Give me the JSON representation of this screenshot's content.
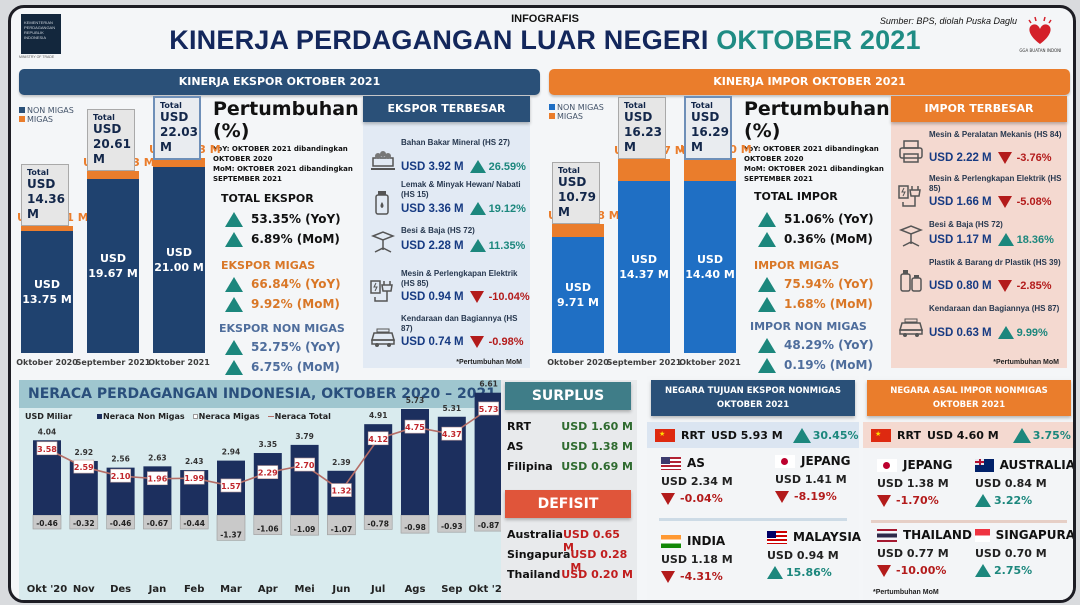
{
  "header": {
    "label": "INFOGRAFIS",
    "title_main": "KINERJA PERDAGANGAN LUAR NEGERI",
    "title_accent": "OKTOBER 2021",
    "source": "Sumber: BPS, diolah Puska Daglu",
    "logo_left_text": "KEMENTERIAN PERDAGANGAN REPUBLIK INDONESIA",
    "logo_left_sub": "MINISTRY OF TRADE",
    "logo_right_text": "BANGGA BUATAN INDONESIA"
  },
  "export": {
    "section_title": "KINERJA EKSPOR OKTOBER 2021",
    "legend": [
      "NON MIGAS",
      "MIGAS"
    ],
    "bars": [
      {
        "period": "Oktober 2020",
        "non_migas": 13.75,
        "migas": 0.61,
        "total": 14.36,
        "non_migas_label": "USD 13.75 M",
        "migas_label": "USD 0.61 M",
        "total_word": "Total",
        "total_label1": "USD",
        "total_label2": "14.36 M"
      },
      {
        "period": "September 2021",
        "non_migas": 19.67,
        "migas": 0.93,
        "total": 20.61,
        "non_migas_label": "USD 19.67 M",
        "migas_label": "USD 0.93 M",
        "total_word": "Total",
        "total_label1": "USD",
        "total_label2": "20.61 M"
      },
      {
        "period": "Oktober 2021",
        "non_migas": 21.0,
        "migas": 1.03,
        "total": 22.03,
        "non_migas_label": "USD 21.00 M",
        "migas_label": "USD 1.03 M",
        "total_word": "Total",
        "total_label1": "USD",
        "total_label2": "22.03 M"
      }
    ],
    "growth": {
      "title": "Pertumbuhan (%)",
      "yoy_note": "YoY:  OKTOBER 2021 dibandingkan OKTOBER 2020",
      "mom_note": "MoM:  OKTOBER 2021 dibandingkan SEPTEMBER 2021",
      "total_head": "TOTAL EKSPOR",
      "total_yoy": "53.35% (YoY)",
      "total_mom": "6.89% (MoM)",
      "migas_head": "EKSPOR MIGAS",
      "migas_yoy": "66.84% (YoY)",
      "migas_mom": "9.92% (MoM)",
      "nonmigas_head": "EKSPOR NON MIGAS",
      "nonmigas_yoy": "52.75% (YoY)",
      "nonmigas_mom": "6.75% (MoM)"
    },
    "top": {
      "title": "EKSPOR TERBESAR",
      "items": [
        {
          "name": "Bahan Bakar Mineral (HS 27)",
          "value": "USD 3.92 M",
          "pct": "26.59%",
          "dir": "up",
          "icon": "coal-cart-icon"
        },
        {
          "name": "Lemak & Minyak Hewan/ Nabati (HS 15)",
          "value": "USD 3.36 M",
          "pct": "19.12%",
          "dir": "up",
          "icon": "oil-bottle-icon"
        },
        {
          "name": "Besi & Baja (HS 72)",
          "value": "USD 2.28 M",
          "pct": "11.35%",
          "dir": "up",
          "icon": "steel-beam-icon"
        },
        {
          "name": "Mesin & Perlengkapan Elektrik (HS 85)",
          "value": "USD 0.94 M",
          "pct": "-10.04%",
          "dir": "down",
          "icon": "electric-plug-icon"
        },
        {
          "name": "Kendaraan dan Bagiannya (HS 87)",
          "value": "USD 0.74 M",
          "pct": "-0.98%",
          "dir": "down",
          "icon": "car-icon"
        }
      ],
      "footnote": "*Pertumbuhan MoM"
    }
  },
  "import": {
    "section_title": "KINERJA IMPOR OKTOBER 2021",
    "legend": [
      "NON MIGAS",
      "MIGAS"
    ],
    "bars": [
      {
        "period": "Oktober 2020",
        "non_migas": 9.71,
        "migas": 1.08,
        "total": 10.79,
        "non_migas_label": "USD 9.71 M",
        "migas_label": "USD 1.08 M",
        "total_word": "Total",
        "total_label1": "USD",
        "total_label2": "10.79 M"
      },
      {
        "period": "September 2021",
        "non_migas": 14.37,
        "migas": 1.87,
        "total": 16.23,
        "non_migas_label": "USD 14.37 M",
        "migas_label": "USD 1.87 M",
        "total_word": "Total",
        "total_label1": "USD",
        "total_label2": "16.23 M"
      },
      {
        "period": "Oktober 2021",
        "non_migas": 14.4,
        "migas": 1.9,
        "total": 16.29,
        "non_migas_label": "USD 14.40 M",
        "migas_label": "USD 1.90 M",
        "total_word": "Total",
        "total_label1": "USD",
        "total_label2": "16.29 M"
      }
    ],
    "growth": {
      "title": "Pertumbuhan (%)",
      "yoy_note": "YoY:  OKTOBER 2021 dibandingkan OKTOBER 2020",
      "mom_note": "MoM:  OKTOBER 2021 dibandingkan SEPTEMBER 2021",
      "total_head": "TOTAL IMPOR",
      "total_yoy": "51.06% (YoY)",
      "total_mom": "0.36% (MoM)",
      "migas_head": "IMPOR MIGAS",
      "migas_yoy": "75.94% (YoY)",
      "migas_mom": "1.68% (MoM)",
      "nonmigas_head": "IMPOR NON MIGAS",
      "nonmigas_yoy": "48.29% (YoY)",
      "nonmigas_mom": "0.19% (MoM)"
    },
    "top": {
      "title": "IMPOR TERBESAR",
      "items": [
        {
          "name": "Mesin & Peralatan Mekanis (HS 84)",
          "value": "USD 2.22 M",
          "pct": "-3.76%",
          "dir": "down",
          "icon": "printer-machine-icon"
        },
        {
          "name": "Mesin & Perlengkapan Elektrik (HS 85)",
          "value": "USD 1.66 M",
          "pct": "-5.08%",
          "dir": "down",
          "icon": "electric-plug-icon"
        },
        {
          "name": "Besi & Baja (HS 72)",
          "value": "USD 1.17 M",
          "pct": "18.36%",
          "dir": "up",
          "icon": "steel-beam-icon"
        },
        {
          "name": "Plastik & Barang dr Plastik (HS 39)",
          "value": "USD 0.80 M",
          "pct": "-2.85%",
          "dir": "down",
          "icon": "plastic-bottles-icon"
        },
        {
          "name": "Kendaraan dan Bagiannya (HS 87)",
          "value": "USD 0.63 M",
          "pct": "9.99%",
          "dir": "up",
          "icon": "car-icon"
        }
      ],
      "footnote": "*Pertumbuhan MoM"
    }
  },
  "chart_data": {
    "type": "bar",
    "title": "NERACA PERDAGANGAN INDONESIA, OKTOBER 2020 –  2021",
    "ylabel": "USD Miliar",
    "legend": [
      "Neraca Non Migas",
      "Neraca Migas",
      "Neraca Total"
    ],
    "legend_position": "top",
    "categories": [
      "Okt '20",
      "Nov",
      "Des",
      "Jan",
      "Feb",
      "Mar",
      "Apr",
      "Mei",
      "Jun",
      "Jul",
      "Ags",
      "Sep",
      "Okt '21"
    ],
    "series": [
      {
        "name": "Neraca Non Migas",
        "type": "bar",
        "color": "#1c2f5e",
        "values": [
          4.04,
          2.92,
          2.56,
          2.63,
          2.43,
          2.94,
          3.35,
          3.79,
          2.39,
          4.91,
          5.73,
          5.31,
          6.61
        ]
      },
      {
        "name": "Neraca Migas",
        "type": "bar",
        "color": "#c9c9c9",
        "values": [
          -0.46,
          -0.32,
          -0.46,
          -0.67,
          -0.44,
          -1.37,
          -1.06,
          -1.09,
          -1.07,
          -0.78,
          -0.98,
          -0.93,
          -0.87
        ]
      },
      {
        "name": "Neraca Total",
        "type": "line",
        "color": "#b56d66",
        "values": [
          3.58,
          2.59,
          2.1,
          1.96,
          1.99,
          1.57,
          2.29,
          2.7,
          1.32,
          4.12,
          4.75,
          4.37,
          5.73
        ]
      }
    ],
    "ylim": [
      -1.6,
      7.0
    ],
    "grid": false
  },
  "surplus": {
    "title": "SURPLUS",
    "rows": [
      {
        "country": "RRT",
        "value": "USD 1.60 M"
      },
      {
        "country": "AS",
        "value": "USD 1.38 M"
      },
      {
        "country": "Filipina",
        "value": "USD 0.69 M"
      }
    ]
  },
  "defisit": {
    "title": "DEFISIT",
    "rows": [
      {
        "country": "Australia",
        "value": "USD 0.65 M"
      },
      {
        "country": "Singapura",
        "value": "USD 0.28 M"
      },
      {
        "country": "Thailand",
        "value": "USD 0.20 M"
      }
    ]
  },
  "export_dest": {
    "title1": "NEGARA TUJUAN EKSPOR NONMIGAS",
    "title2": "OKTOBER 2021",
    "top": {
      "country": "RRT",
      "value": "USD 5.93 M",
      "pct": "30.45%",
      "dir": "up"
    },
    "cells": [
      {
        "country": "AS",
        "value": "USD 2.34 M",
        "pct": "-0.04%",
        "dir": "down"
      },
      {
        "country": "JEPANG",
        "value": "USD 1.41 M",
        "pct": "-8.19%",
        "dir": "down"
      },
      {
        "country": "INDIA",
        "value": "USD 1.18 M",
        "pct": "-4.31%",
        "dir": "down"
      },
      {
        "country": "MALAYSIA",
        "value": "USD 0.94 M",
        "pct": "15.86%",
        "dir": "up"
      }
    ]
  },
  "import_origin": {
    "title1": "NEGARA ASAL IMPOR NONMIGAS",
    "title2": "OKTOBER 2021",
    "top": {
      "country": "RRT",
      "value": "USD 4.60 M",
      "pct": "3.75%",
      "dir": "up"
    },
    "cells": [
      {
        "country": "JEPANG",
        "value": "USD 1.38 M",
        "pct": "-1.70%",
        "dir": "down"
      },
      {
        "country": "AUSTRALIA",
        "value": "USD 0.84 M",
        "pct": "3.22%",
        "dir": "up"
      },
      {
        "country": "THAILAND",
        "value": "USD 0.77 M",
        "pct": "-10.00%",
        "dir": "down"
      },
      {
        "country": "SINGAPURA",
        "value": "USD 0.70 M",
        "pct": "2.75%",
        "dir": "up"
      }
    ],
    "footnote": "*Pertumbuhan MoM"
  }
}
